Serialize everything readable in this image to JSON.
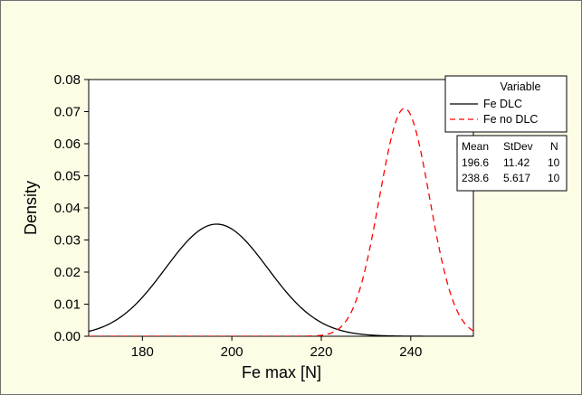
{
  "chart_data": {
    "type": "line",
    "xlabel": "Fe max [N]",
    "ylabel": "Density",
    "xlim": [
      168,
      254
    ],
    "ylim": [
      0,
      0.08
    ],
    "x_ticks": [
      180,
      200,
      220,
      240
    ],
    "y_ticks": [
      0.0,
      0.01,
      0.02,
      0.03,
      0.04,
      0.05,
      0.06,
      0.07,
      0.08
    ],
    "grid": false,
    "legend": {
      "title": "Variable",
      "placement": "top-right",
      "entries": [
        {
          "name": "Fe DLC",
          "color": "#000000",
          "style": "solid"
        },
        {
          "name": "Fe no DLC",
          "color": "#ff0000",
          "style": "dashed"
        }
      ]
    },
    "stats_table": {
      "headers": [
        "Mean",
        "StDev",
        "N"
      ],
      "rows": [
        [
          "196.6",
          "11.42",
          "10"
        ],
        [
          "238.6",
          "5.617",
          "10"
        ]
      ]
    },
    "series": [
      {
        "name": "Fe DLC",
        "distribution": "normal",
        "mean": 196.6,
        "stdev": 11.42,
        "n": 10,
        "color": "#000000",
        "dash": "solid"
      },
      {
        "name": "Fe no DLC",
        "distribution": "normal",
        "mean": 238.6,
        "stdev": 5.617,
        "n": 10,
        "color": "#ff0000",
        "dash": "dashed"
      }
    ]
  }
}
